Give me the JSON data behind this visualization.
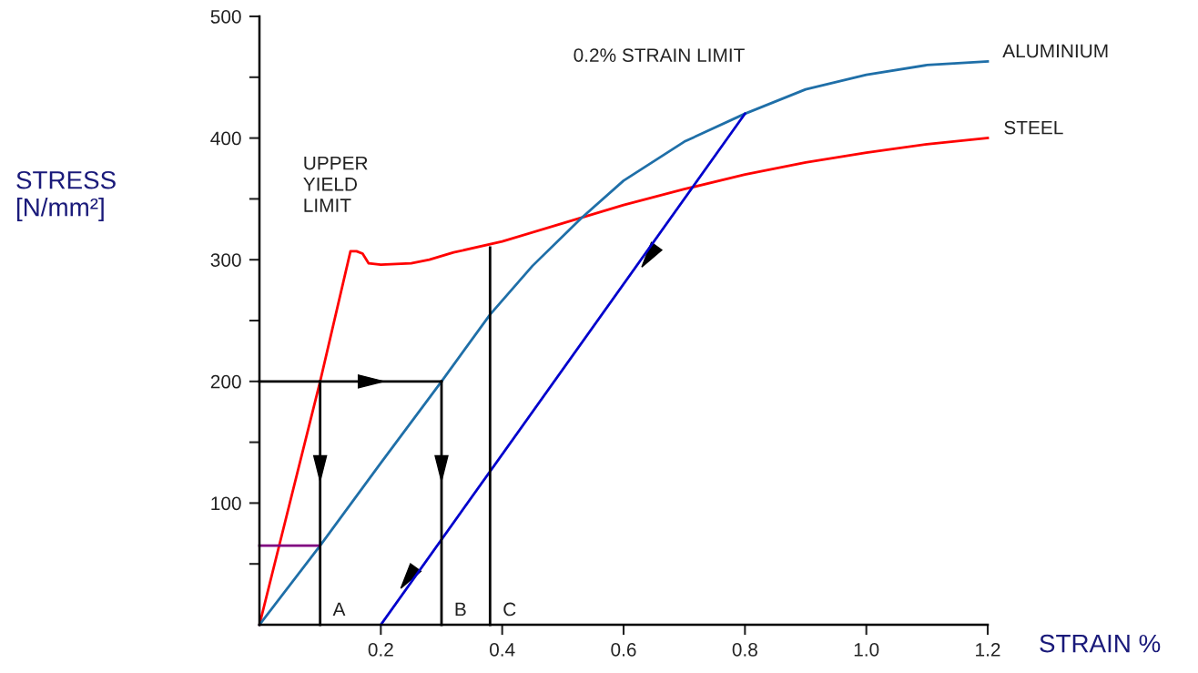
{
  "chart_data": {
    "type": "line",
    "xlabel": "STRAIN %",
    "ylabel": "STRESS\n[N/mm²]",
    "xlim": [
      0,
      1.2
    ],
    "ylim": [
      0,
      500
    ],
    "xticks": [
      0.2,
      0.4,
      0.6,
      0.8,
      {
        "value": 1.0,
        "label": "1.0"
      },
      1.2
    ],
    "yticks": [
      {
        "value": 50,
        "label": null
      },
      100,
      {
        "value": 150,
        "label": null
      },
      200,
      {
        "value": 250,
        "label": null
      },
      300,
      {
        "value": 350,
        "label": null
      },
      400,
      {
        "value": 450,
        "label": null
      },
      500
    ],
    "grid": false,
    "legend": false,
    "marker": "none",
    "line_style": "solid",
    "series": [
      {
        "name": "STEEL",
        "color": "#ff0000",
        "x": [
          0,
          0.1,
          0.15,
          0.16,
          0.17,
          0.18,
          0.2,
          0.25,
          0.28,
          0.32,
          0.4,
          0.5,
          0.6,
          0.7,
          0.8,
          0.9,
          1.0,
          1.1,
          1.2
        ],
        "values": [
          0,
          200,
          307,
          307,
          305,
          297,
          296,
          297,
          300,
          306,
          315,
          330,
          345,
          358,
          370,
          380,
          388,
          395,
          400
        ]
      },
      {
        "name": "ALUMINIUM",
        "color": "#1f6fa8",
        "x": [
          0,
          0.1,
          0.2,
          0.3,
          0.38,
          0.45,
          0.53,
          0.6,
          0.7,
          0.8,
          0.9,
          1.0,
          1.1,
          1.2
        ],
        "values": [
          0,
          65,
          133,
          200,
          255,
          295,
          334,
          365,
          397,
          420,
          440,
          452,
          460,
          463
        ]
      },
      {
        "color": "#0000cc",
        "x": [
          0.2,
          0.8
        ],
        "values": [
          0,
          420
        ]
      },
      {
        "color": "#800080",
        "x": [
          0,
          0.1
        ],
        "values": [
          65,
          65
        ]
      },
      {
        "color": "#000000",
        "x": [
          0,
          0.3
        ],
        "values": [
          200,
          200
        ]
      },
      {
        "color": "#000000",
        "x": [
          0.1,
          0.1
        ],
        "values": [
          0,
          200
        ]
      },
      {
        "color": "#000000",
        "x": [
          0.3,
          0.3
        ],
        "values": [
          0,
          200
        ]
      },
      {
        "color": "#000000",
        "x": [
          0.38,
          0.38
        ],
        "values": [
          0,
          310
        ]
      }
    ],
    "annotations": [
      {
        "text": "UPPER\nYIELD\nLIMIT",
        "x": 0.155,
        "y": 307
      },
      {
        "text": "0.2% STRAIN LIMIT",
        "x": 0.8,
        "y": 420
      },
      {
        "text": "A",
        "x": 0.1,
        "y": 0
      },
      {
        "text": "B",
        "x": 0.3,
        "y": 0
      },
      {
        "text": "C",
        "x": 0.38,
        "y": 0
      }
    ]
  }
}
